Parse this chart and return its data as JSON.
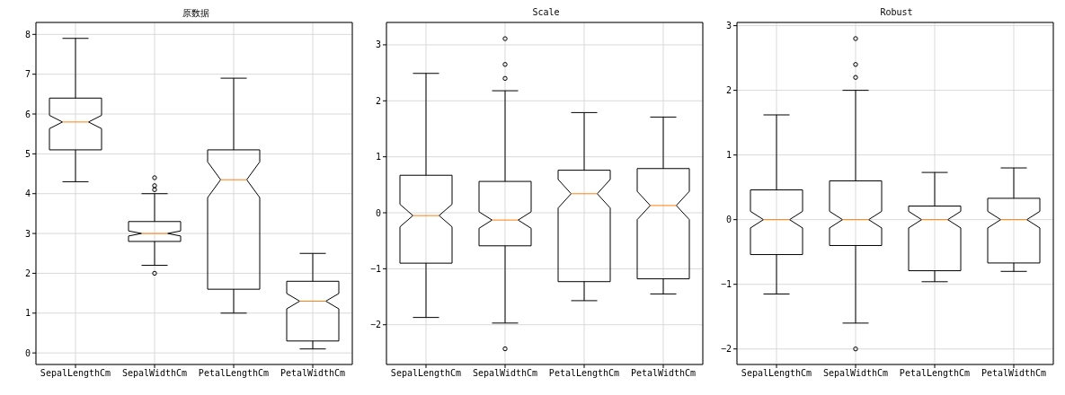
{
  "chart_data": [
    {
      "type": "box",
      "title": "原数据",
      "categories": [
        "SepalLengthCm",
        "SepalWidthCm",
        "PetalLengthCm",
        "PetalWidthCm"
      ],
      "boxes": [
        {
          "low": 4.3,
          "q1": 5.1,
          "median": 5.8,
          "q3": 6.4,
          "high": 7.9
        },
        {
          "low": 2.2,
          "q1": 2.8,
          "median": 3.0,
          "q3": 3.3,
          "high": 4.0,
          "outliers": [
            4.4,
            4.1,
            4.2,
            2.0
          ]
        },
        {
          "low": 1.0,
          "q1": 1.6,
          "median": 4.35,
          "q3": 5.1,
          "high": 6.9
        },
        {
          "low": 0.1,
          "q1": 0.3,
          "median": 1.3,
          "q3": 1.8,
          "high": 2.5
        }
      ],
      "ylim": [
        -0.29,
        8.3
      ],
      "yticks": [
        0,
        1,
        2,
        3,
        4,
        5,
        6,
        7,
        8
      ],
      "grid": true
    },
    {
      "type": "box",
      "title": "Scale",
      "categories": [
        "SepalLengthCm",
        "SepalWidthCm",
        "PetalLengthCm",
        "PetalWidthCm"
      ],
      "boxes": [
        {
          "low": -1.87,
          "q1": -0.9,
          "median": -0.05,
          "q3": 0.67,
          "high": 2.49
        },
        {
          "low": -1.97,
          "q1": -0.59,
          "median": -0.13,
          "q3": 0.56,
          "high": 2.18,
          "outliers": [
            2.4,
            2.65,
            3.11,
            -2.43
          ]
        },
        {
          "low": -1.57,
          "q1": -1.23,
          "median": 0.34,
          "q3": 0.76,
          "high": 1.79
        },
        {
          "low": -1.45,
          "q1": -1.18,
          "median": 0.13,
          "q3": 0.79,
          "high": 1.71
        }
      ],
      "ylim": [
        -2.71,
        3.4
      ],
      "yticks": [
        -2,
        -1,
        0,
        1,
        2,
        3
      ],
      "grid": true
    },
    {
      "type": "box",
      "title": "Robust",
      "categories": [
        "SepalLengthCm",
        "SepalWidthCm",
        "PetalLengthCm",
        "PetalWidthCm"
      ],
      "boxes": [
        {
          "low": -1.15,
          "q1": -0.54,
          "median": 0,
          "q3": 0.46,
          "high": 1.62
        },
        {
          "low": -1.6,
          "q1": -0.4,
          "median": 0,
          "q3": 0.6,
          "high": 2.0,
          "outliers": [
            2.2,
            2.4,
            2.8,
            -2.0
          ]
        },
        {
          "low": -0.96,
          "q1": -0.79,
          "median": 0,
          "q3": 0.21,
          "high": 0.73
        },
        {
          "low": -0.8,
          "q1": -0.67,
          "median": 0,
          "q3": 0.33,
          "high": 0.8
        }
      ],
      "ylim": [
        -2.24,
        3.05
      ],
      "yticks": [
        -2,
        -1,
        0,
        1,
        2,
        3
      ],
      "grid": true
    }
  ]
}
